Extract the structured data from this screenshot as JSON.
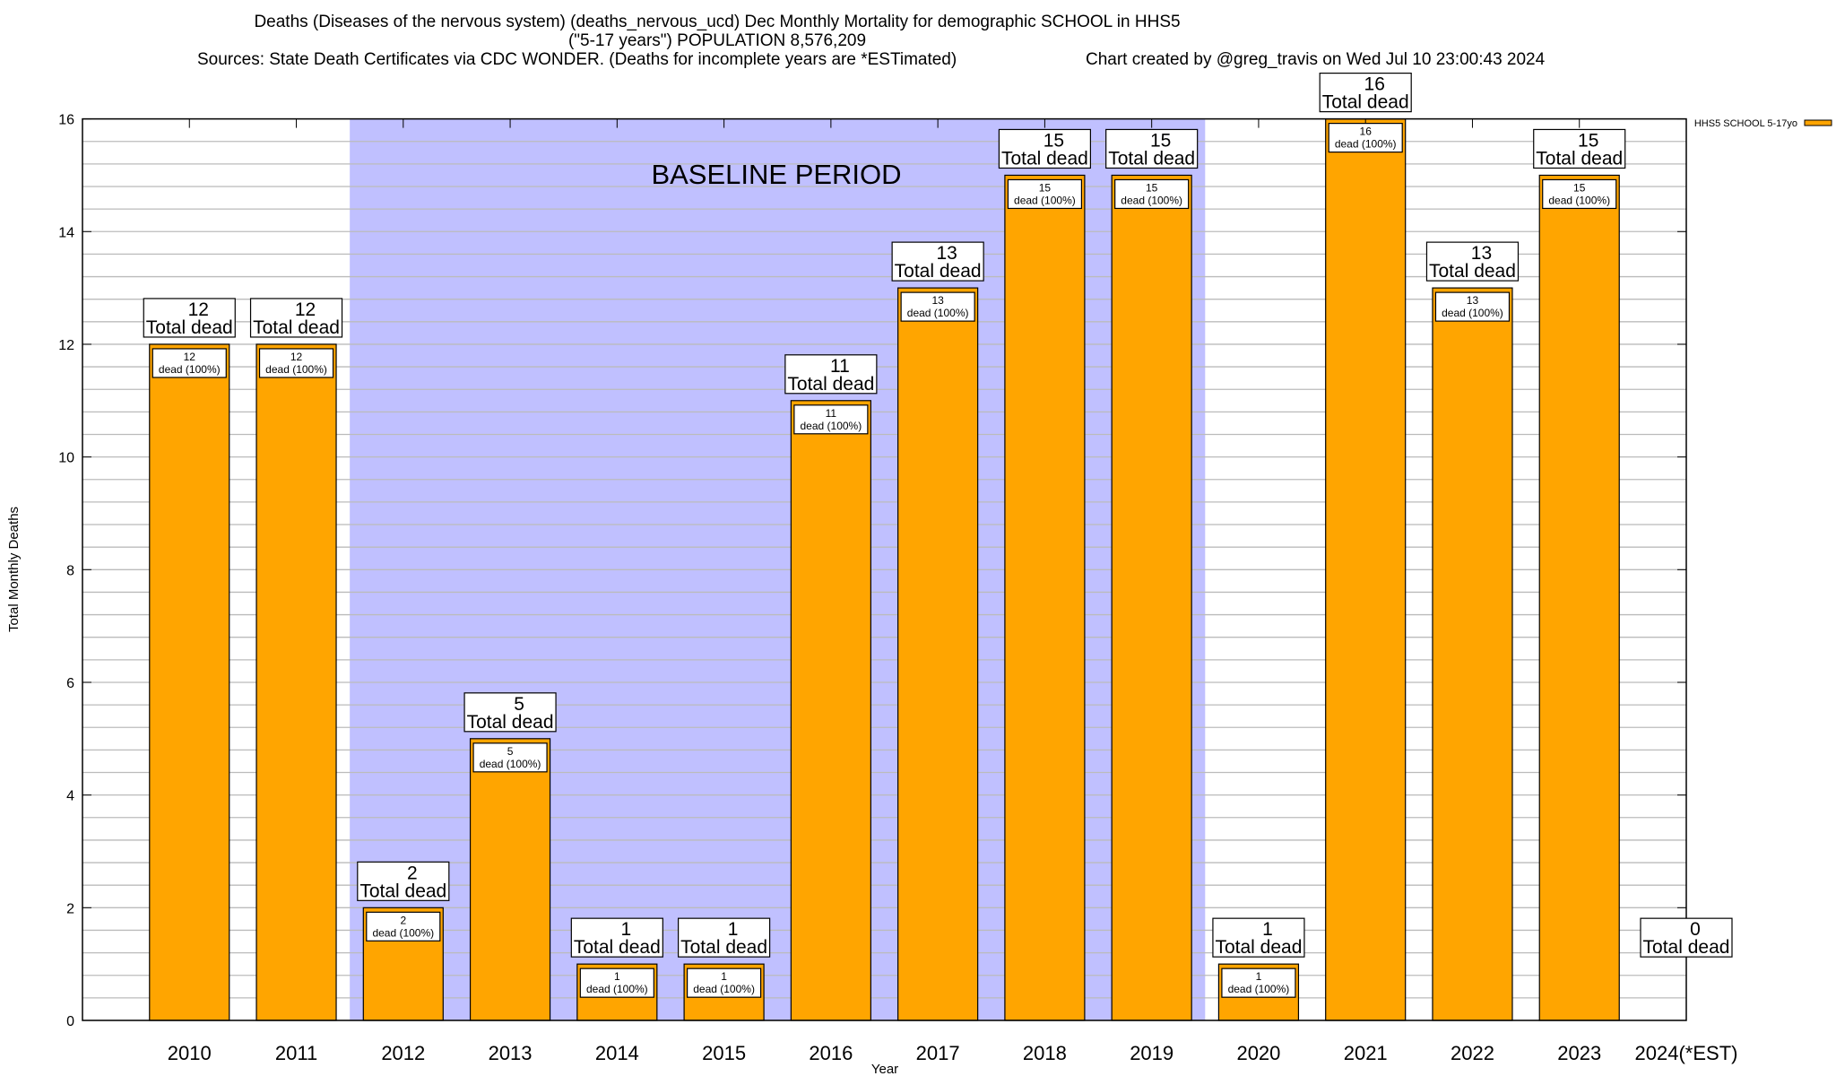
{
  "chart_data": {
    "type": "bar",
    "title_lines": [
      "Deaths (Diseases of the nervous system) (deaths_nervous_ucd) Dec Monthly Mortality for demographic SCHOOL in HHS5",
      "(\"5-17 years\") POPULATION 8,576,209"
    ],
    "sources": "Sources: State Death Certificates via CDC WONDER. (Deaths for incomplete years are *ESTimated)",
    "credit": "Chart created by @greg_travis on Wed Jul 10 23:00:43 2024",
    "xlabel": "Year",
    "ylabel": "Total Monthly Deaths",
    "ylim": [
      0,
      16
    ],
    "yticks": [
      0,
      2,
      4,
      6,
      8,
      10,
      12,
      14,
      16
    ],
    "grid": true,
    "categories": [
      "2010",
      "2011",
      "2012",
      "2013",
      "2014",
      "2015",
      "2016",
      "2017",
      "2018",
      "2019",
      "2020",
      "2021",
      "2022",
      "2023",
      "2024(*EST)"
    ],
    "series": [
      {
        "name": "HHS5 SCHOOL 5-17yo",
        "color": "#ffa500",
        "values": [
          12,
          12,
          2,
          5,
          1,
          1,
          11,
          13,
          15,
          15,
          1,
          16,
          13,
          15,
          0
        ]
      }
    ],
    "total_label_suffix": "Total dead",
    "inner_label_suffix": "dead (100%)",
    "baseline": {
      "label": "BASELINE PERIOD",
      "from": "2012",
      "to": "2019",
      "color": "#c0c0ff"
    },
    "legend_position": "top-right"
  }
}
